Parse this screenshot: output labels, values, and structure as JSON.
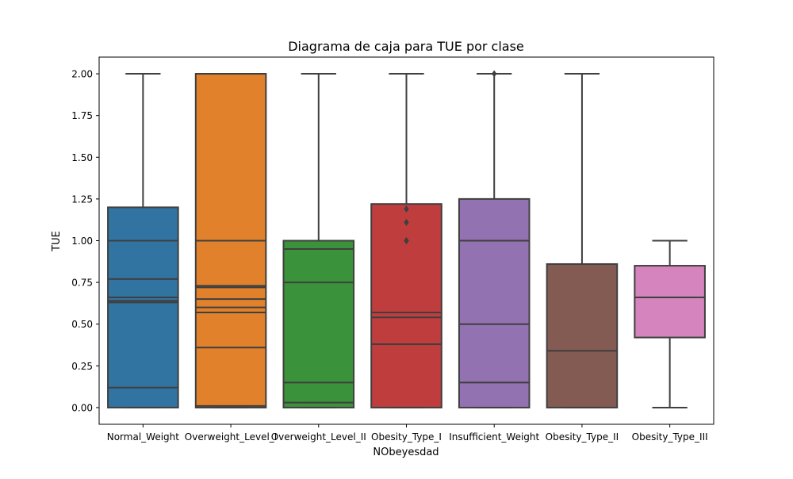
{
  "chart_data": {
    "type": "box",
    "title": "Diagrama de caja para TUE por clase",
    "xlabel": "NObeyesdad",
    "ylabel": "TUE",
    "ylim": [
      -0.1,
      2.1
    ],
    "yticks": [
      0.0,
      0.25,
      0.5,
      0.75,
      1.0,
      1.25,
      1.5,
      1.75,
      2.0
    ],
    "ytick_labels": [
      "0.00",
      "0.25",
      "0.50",
      "0.75",
      "1.00",
      "1.25",
      "1.50",
      "1.75",
      "2.00"
    ],
    "grid": false,
    "categories": [
      "Normal_Weight",
      "Overweight_Level_I",
      "Overweight_Level_II",
      "Obesity_Type_I",
      "Insufficient_Weight",
      "Obesity_Type_II",
      "Obesity_Type_III"
    ],
    "boxes": [
      {
        "category": "Normal_Weight",
        "color": "#3274a1",
        "whisker_low": 0.0,
        "q1": 0.0,
        "median": 0.63,
        "q3": 1.2,
        "whisker_high": 2.0,
        "outliers": [],
        "inner_lines": [
          0.12,
          0.64,
          0.66,
          0.77,
          1.0,
          1.0
        ]
      },
      {
        "category": "Overweight_Level_I",
        "color": "#e1812c",
        "whisker_low": 0.0,
        "q1": 0.0,
        "median": 0.72,
        "q3": 2.0,
        "whisker_high": 2.0,
        "outliers": [],
        "inner_lines": [
          0.01,
          0.36,
          0.57,
          0.6,
          0.65,
          0.73,
          1.0,
          2.0
        ]
      },
      {
        "category": "Overweight_Level_II",
        "color": "#3a923a",
        "whisker_low": 0.0,
        "q1": 0.0,
        "median": 0.75,
        "q3": 1.0,
        "whisker_high": 2.0,
        "outliers": [],
        "inner_lines": [
          0.03,
          0.15,
          0.95
        ]
      },
      {
        "category": "Obesity_Type_I",
        "color": "#c03d3e",
        "whisker_low": 0.0,
        "q1": 0.0,
        "median": 0.54,
        "q3": 1.22,
        "whisker_high": 2.0,
        "outliers": [
          1.0,
          1.0,
          1.11,
          1.19
        ],
        "inner_lines": [
          0.38,
          0.57
        ]
      },
      {
        "category": "Insufficient_Weight",
        "color": "#9372b2",
        "whisker_low": 0.0,
        "q1": 0.0,
        "median": 1.0,
        "q3": 1.25,
        "whisker_high": 2.0,
        "outliers": [
          2.0
        ],
        "inner_lines": [
          0.15,
          0.5
        ]
      },
      {
        "category": "Obesity_Type_II",
        "color": "#845b53",
        "whisker_low": 0.0,
        "q1": 0.0,
        "median": 0.34,
        "q3": 0.86,
        "whisker_high": 2.0,
        "outliers": [],
        "inner_lines": []
      },
      {
        "category": "Obesity_Type_III",
        "color": "#d684bd",
        "whisker_low": 0.0,
        "q1": 0.42,
        "median": 0.66,
        "q3": 0.85,
        "whisker_high": 1.0,
        "outliers": [],
        "inner_lines": []
      }
    ]
  }
}
